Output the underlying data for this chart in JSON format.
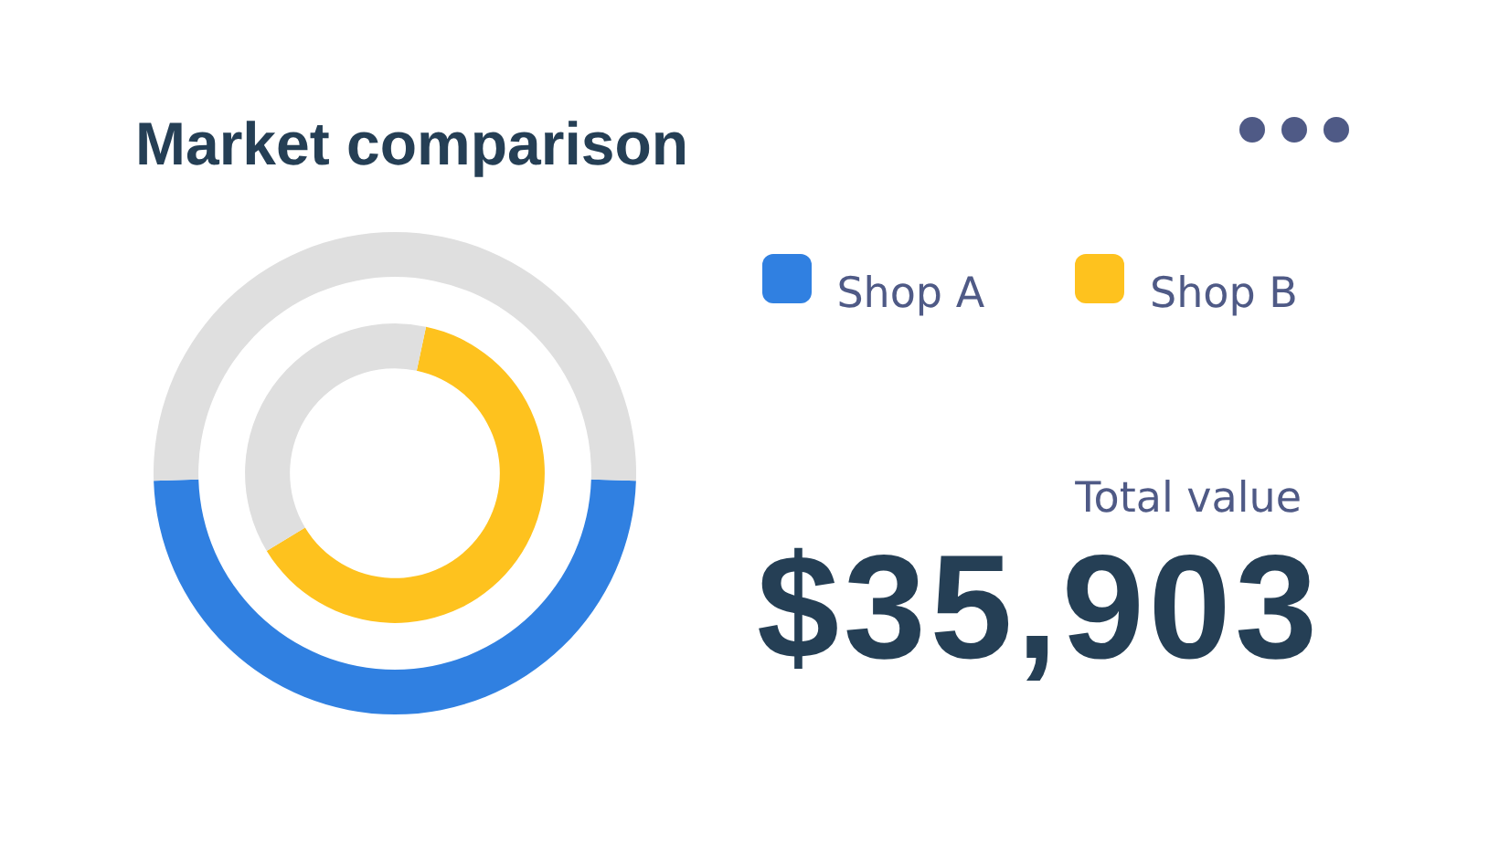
{
  "chart_data": {
    "type": "donut",
    "title": "Market comparison",
    "categories": [
      null,
      null
    ],
    "series": [
      {
        "name": "Shop A",
        "values": [
          49,
          51
        ],
        "colors": [
          "#3080e1",
          "#dfdfdf"
        ]
      },
      {
        "name": "Shop B",
        "values": [
          63,
          37
        ],
        "colors": [
          "#fec21e",
          "#dfdfdf"
        ]
      }
    ],
    "legend": "right",
    "annotations": [
      "Total value",
      "$35,903"
    ]
  }
}
